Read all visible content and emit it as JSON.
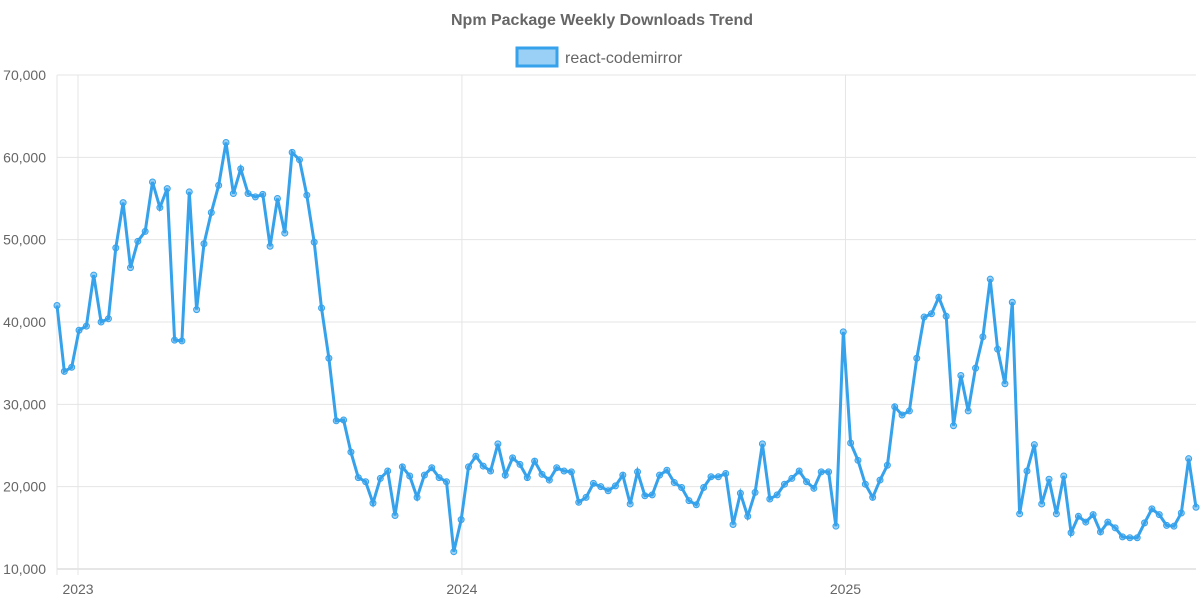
{
  "chart_data": {
    "type": "line",
    "title": "Npm Package Weekly Downloads Trend",
    "xlabel": "",
    "ylabel": "",
    "ylim": [
      10000,
      70000
    ],
    "y_ticks": [
      10000,
      20000,
      30000,
      40000,
      50000,
      60000,
      70000
    ],
    "y_tick_labels": [
      "10,000",
      "20,000",
      "30,000",
      "40,000",
      "50,000",
      "60,000",
      "70,000"
    ],
    "x_unit": "week index (weekly samples)",
    "x_ticks": [
      {
        "label": "2023",
        "week": 2.86
      },
      {
        "label": "2024",
        "week": 55.1
      },
      {
        "label": "2025",
        "week": 107.3
      }
    ],
    "grid": true,
    "legend_position": "top",
    "colors": {
      "line": "#36A2EB",
      "fill": "#9AD0F5"
    },
    "series": [
      {
        "name": "react-codemirror",
        "values": [
          42000,
          34000,
          34500,
          39000,
          39500,
          45700,
          40000,
          40400,
          49000,
          54500,
          46600,
          49800,
          51000,
          57000,
          53900,
          56200,
          37800,
          37700,
          55800,
          41500,
          49500,
          53300,
          56600,
          61800,
          55600,
          58600,
          55600,
          55200,
          55500,
          49200,
          55000,
          50800,
          60600,
          59700,
          55400,
          49700,
          41700,
          35600,
          28000,
          28100,
          24200,
          21100,
          20600,
          18000,
          21000,
          21900,
          16500,
          22400,
          21300,
          18700,
          21400,
          22300,
          21100,
          20600,
          12100,
          16000,
          22400,
          23700,
          22500,
          21900,
          25200,
          21400,
          23500,
          22700,
          21100,
          23100,
          21500,
          20800,
          22300,
          21900,
          21800,
          18100,
          18700,
          20400,
          20000,
          19500,
          20100,
          21400,
          17900,
          21800,
          18900,
          19000,
          21400,
          22000,
          20500,
          19900,
          18300,
          17800,
          19900,
          21200,
          21200,
          21600,
          15400,
          19200,
          16400,
          19300,
          25200,
          18500,
          19000,
          20300,
          21000,
          21900,
          20600,
          19800,
          21800,
          21800,
          15200,
          38800,
          25300,
          23200,
          20300,
          18700,
          20800,
          22600,
          29700,
          28700,
          29200,
          35600,
          40600,
          41000,
          43000,
          40700,
          27400,
          33500,
          29200,
          34400,
          38200,
          45200,
          36700,
          32500,
          42400,
          16700,
          21900,
          25100,
          17900,
          20900,
          16700,
          21300,
          14400,
          16400,
          15700,
          16600,
          14500,
          15700,
          15000,
          13900,
          13800,
          13800,
          15600,
          17300,
          16600,
          15300,
          15200,
          16800,
          23400,
          17500
        ]
      }
    ]
  }
}
